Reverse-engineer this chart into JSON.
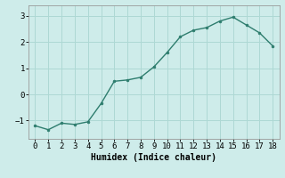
{
  "x": [
    0,
    1,
    2,
    3,
    4,
    5,
    6,
    7,
    8,
    9,
    10,
    11,
    12,
    13,
    14,
    15,
    16,
    17,
    18
  ],
  "y": [
    -1.2,
    -1.35,
    -1.1,
    -1.15,
    -1.05,
    -0.35,
    0.5,
    0.55,
    0.65,
    1.05,
    1.6,
    2.2,
    2.45,
    2.55,
    2.8,
    2.95,
    2.65,
    2.35,
    1.85
  ],
  "line_color": "#2e7d6e",
  "marker": "o",
  "markersize": 2.0,
  "linewidth": 1.0,
  "xlabel": "Humidex (Indice chaleur)",
  "xlim": [
    -0.5,
    18.5
  ],
  "ylim": [
    -1.7,
    3.4
  ],
  "yticks": [
    -1,
    0,
    1,
    2,
    3
  ],
  "xticks": [
    0,
    1,
    2,
    3,
    4,
    5,
    6,
    7,
    8,
    9,
    10,
    11,
    12,
    13,
    14,
    15,
    16,
    17,
    18
  ],
  "bg_color": "#ceecea",
  "grid_color": "#aed8d4",
  "xlabel_fontsize": 7,
  "tick_fontsize": 6.5
}
